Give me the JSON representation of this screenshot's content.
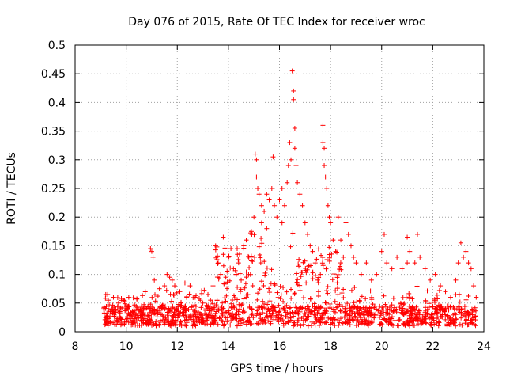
{
  "chart_data": {
    "type": "scatter",
    "title": "Day 076 of 2015, Rate Of TEC Index for receiver wroc",
    "xlabel": "GPS time / hours",
    "ylabel": "ROTI / TECUs",
    "xlim": [
      8,
      24
    ],
    "ylim": [
      0,
      0.5
    ],
    "xticks": [
      8,
      10,
      12,
      14,
      16,
      18,
      20,
      22,
      24
    ],
    "yticks": [
      0,
      0.05,
      0.1,
      0.15,
      0.2,
      0.25,
      0.3,
      0.35,
      0.4,
      0.45,
      0.5
    ],
    "xtick_labels": [
      "8",
      "10",
      "12",
      "14",
      "16",
      "18",
      "20",
      "22",
      "24"
    ],
    "ytick_labels": [
      "0",
      "0.05",
      "0.1",
      "0.15",
      "0.2",
      "0.25",
      "0.3",
      "0.35",
      "0.4",
      "0.45",
      "0.5"
    ],
    "grid": true,
    "marker": "+",
    "series": [
      {
        "name": "ROTI",
        "color": "#ff0000",
        "points": [
          [
            9.2,
            0.065
          ],
          [
            9.3,
            0.055
          ],
          [
            9.5,
            0.06
          ],
          [
            9.7,
            0.05
          ],
          [
            9.9,
            0.055
          ],
          [
            10.1,
            0.06
          ],
          [
            10.3,
            0.045
          ],
          [
            10.6,
            0.045
          ],
          [
            10.9,
            0.04
          ],
          [
            10.95,
            0.145
          ],
          [
            11.0,
            0.14
          ],
          [
            11.05,
            0.13
          ],
          [
            11.1,
            0.09
          ],
          [
            11.3,
            0.075
          ],
          [
            11.5,
            0.08
          ],
          [
            11.6,
            0.1
          ],
          [
            11.7,
            0.095
          ],
          [
            11.8,
            0.09
          ],
          [
            11.9,
            0.08
          ],
          [
            12.1,
            0.07
          ],
          [
            12.3,
            0.085
          ],
          [
            12.5,
            0.08
          ],
          [
            12.7,
            0.06
          ],
          [
            12.9,
            0.055
          ],
          [
            13.0,
            0.05
          ],
          [
            13.2,
            0.065
          ],
          [
            13.3,
            0.055
          ],
          [
            13.4,
            0.08
          ],
          [
            13.5,
            0.15
          ],
          [
            13.55,
            0.148
          ],
          [
            13.6,
            0.12
          ],
          [
            13.7,
            0.1
          ],
          [
            13.8,
            0.135
          ],
          [
            13.8,
            0.165
          ],
          [
            13.9,
            0.095
          ],
          [
            14.0,
            0.13
          ],
          [
            14.1,
            0.145
          ],
          [
            14.2,
            0.11
          ],
          [
            14.3,
            0.1
          ],
          [
            14.4,
            0.12
          ],
          [
            14.5,
            0.09
          ],
          [
            14.6,
            0.15
          ],
          [
            14.7,
            0.16
          ],
          [
            14.8,
            0.13
          ],
          [
            14.9,
            0.175
          ],
          [
            15.0,
            0.2
          ],
          [
            15.05,
            0.31
          ],
          [
            15.1,
            0.3
          ],
          [
            15.1,
            0.27
          ],
          [
            15.15,
            0.25
          ],
          [
            15.2,
            0.24
          ],
          [
            15.3,
            0.22
          ],
          [
            15.3,
            0.19
          ],
          [
            15.4,
            0.21
          ],
          [
            15.5,
            0.24
          ],
          [
            15.5,
            0.18
          ],
          [
            15.6,
            0.23
          ],
          [
            15.7,
            0.25
          ],
          [
            15.75,
            0.305
          ],
          [
            15.8,
            0.22
          ],
          [
            15.9,
            0.2
          ],
          [
            16.0,
            0.23
          ],
          [
            16.1,
            0.25
          ],
          [
            16.1,
            0.19
          ],
          [
            16.2,
            0.22
          ],
          [
            16.3,
            0.26
          ],
          [
            16.35,
            0.29
          ],
          [
            16.4,
            0.33
          ],
          [
            16.45,
            0.3
          ],
          [
            16.5,
            0.455
          ],
          [
            16.55,
            0.42
          ],
          [
            16.55,
            0.405
          ],
          [
            16.6,
            0.355
          ],
          [
            16.6,
            0.32
          ],
          [
            16.65,
            0.29
          ],
          [
            16.7,
            0.26
          ],
          [
            16.8,
            0.24
          ],
          [
            16.9,
            0.22
          ],
          [
            17.0,
            0.19
          ],
          [
            17.1,
            0.17
          ],
          [
            17.2,
            0.15
          ],
          [
            17.3,
            0.14
          ],
          [
            17.4,
            0.12
          ],
          [
            17.5,
            0.09
          ],
          [
            17.6,
            0.1
          ],
          [
            17.7,
            0.36
          ],
          [
            17.7,
            0.33
          ],
          [
            17.75,
            0.32
          ],
          [
            17.75,
            0.29
          ],
          [
            17.8,
            0.27
          ],
          [
            17.85,
            0.25
          ],
          [
            17.9,
            0.22
          ],
          [
            17.95,
            0.2
          ],
          [
            18.0,
            0.19
          ],
          [
            18.1,
            0.16
          ],
          [
            18.2,
            0.14
          ],
          [
            18.3,
            0.2
          ],
          [
            18.4,
            0.16
          ],
          [
            18.5,
            0.13
          ],
          [
            18.6,
            0.19
          ],
          [
            18.7,
            0.17
          ],
          [
            18.8,
            0.15
          ],
          [
            18.9,
            0.13
          ],
          [
            19.0,
            0.12
          ],
          [
            19.2,
            0.1
          ],
          [
            19.4,
            0.12
          ],
          [
            19.6,
            0.09
          ],
          [
            19.8,
            0.1
          ],
          [
            20.0,
            0.14
          ],
          [
            20.1,
            0.17
          ],
          [
            20.2,
            0.12
          ],
          [
            20.4,
            0.11
          ],
          [
            20.6,
            0.13
          ],
          [
            20.8,
            0.11
          ],
          [
            21.0,
            0.12
          ],
          [
            21.0,
            0.165
          ],
          [
            21.1,
            0.14
          ],
          [
            21.3,
            0.12
          ],
          [
            21.4,
            0.17
          ],
          [
            21.5,
            0.13
          ],
          [
            21.7,
            0.11
          ],
          [
            21.9,
            0.09
          ],
          [
            22.1,
            0.1
          ],
          [
            22.3,
            0.08
          ],
          [
            22.5,
            0.07
          ],
          [
            22.7,
            0.06
          ],
          [
            22.9,
            0.09
          ],
          [
            23.0,
            0.12
          ],
          [
            23.1,
            0.155
          ],
          [
            23.2,
            0.13
          ],
          [
            23.3,
            0.14
          ],
          [
            23.4,
            0.12
          ],
          [
            23.5,
            0.11
          ],
          [
            23.6,
            0.08
          ],
          [
            23.7,
            0.06
          ]
        ],
        "baseline_band": {
          "x_start": 9.1,
          "x_end": 23.7,
          "y_min": 0.01,
          "y_max": 0.045
        }
      }
    ]
  }
}
